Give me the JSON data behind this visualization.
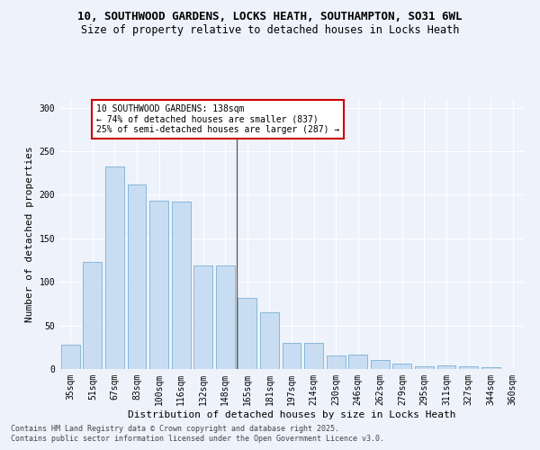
{
  "title1": "10, SOUTHWOOD GARDENS, LOCKS HEATH, SOUTHAMPTON, SO31 6WL",
  "title2": "Size of property relative to detached houses in Locks Heath",
  "xlabel": "Distribution of detached houses by size in Locks Heath",
  "ylabel": "Number of detached properties",
  "categories": [
    "35sqm",
    "51sqm",
    "67sqm",
    "83sqm",
    "100sqm",
    "116sqm",
    "132sqm",
    "148sqm",
    "165sqm",
    "181sqm",
    "197sqm",
    "214sqm",
    "230sqm",
    "246sqm",
    "262sqm",
    "279sqm",
    "295sqm",
    "311sqm",
    "327sqm",
    "344sqm",
    "360sqm"
  ],
  "values": [
    28,
    123,
    233,
    212,
    193,
    192,
    119,
    119,
    82,
    65,
    30,
    30,
    15,
    17,
    10,
    6,
    3,
    4,
    3,
    2,
    0
  ],
  "bar_color": "#c9ddf2",
  "bar_edge_color": "#7bafd4",
  "vline_x_index": 7.5,
  "annotation_text": "10 SOUTHWOOD GARDENS: 138sqm\n← 74% of detached houses are smaller (837)\n25% of semi-detached houses are larger (287) →",
  "annotation_box_color": "#ffffff",
  "annotation_box_edge": "#cc0000",
  "ylim": [
    0,
    310
  ],
  "yticks": [
    0,
    50,
    100,
    150,
    200,
    250,
    300
  ],
  "footnote1": "Contains HM Land Registry data © Crown copyright and database right 2025.",
  "footnote2": "Contains public sector information licensed under the Open Government Licence v3.0.",
  "bg_color": "#eef2fb",
  "plot_bg_color": "#eef2fb",
  "grid_color": "#ffffff",
  "title_fontsize": 9,
  "subtitle_fontsize": 8.5,
  "axis_label_fontsize": 8,
  "tick_fontsize": 7,
  "annot_fontsize": 7,
  "footnote_fontsize": 6
}
